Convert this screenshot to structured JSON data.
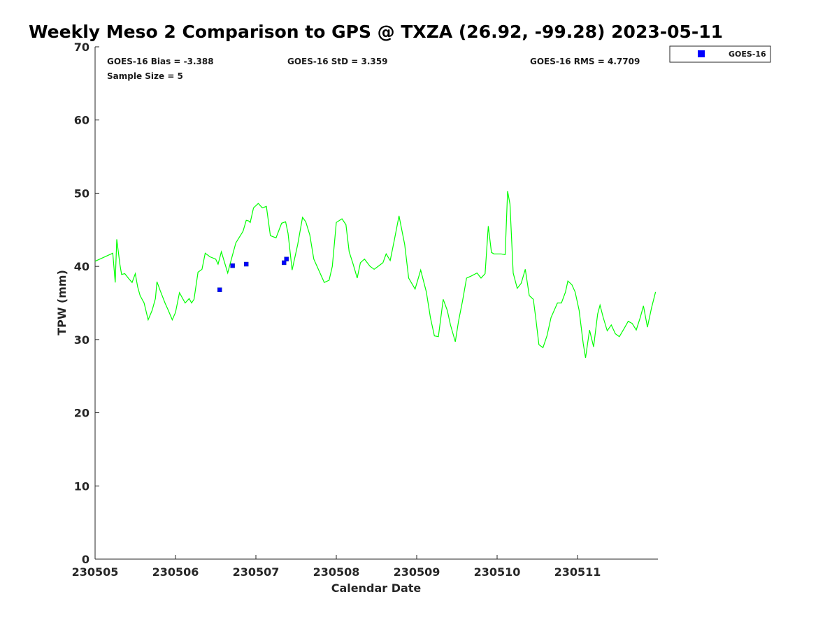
{
  "chart_data": {
    "type": "line",
    "title": "Weekly Meso 2 Comparison to GPS @ TXZA (26.92, -99.28) 2023-05-11",
    "xlabel": "Calendar Date",
    "ylabel": "TPW (mm)",
    "xlim": [
      230505,
      230512
    ],
    "ylim": [
      0,
      70
    ],
    "x_ticks": [
      230505,
      230506,
      230507,
      230508,
      230509,
      230510,
      230511
    ],
    "x_tick_labels": [
      "230505",
      "230506",
      "230507",
      "230508",
      "230509",
      "230510",
      "230511"
    ],
    "y_ticks": [
      0,
      10,
      20,
      30,
      40,
      50,
      60,
      70
    ],
    "y_tick_labels": [
      "0",
      "10",
      "20",
      "30",
      "40",
      "50",
      "60",
      "70"
    ],
    "grid": false,
    "legend_position": "outside-top-right",
    "stats": {
      "bias": "GOES-16 Bias = -3.388",
      "std": "GOES-16 StD = 3.359",
      "rms": "GOES-16 RMS = 4.7709",
      "sample_size": "Sample Size = 5"
    },
    "series": [
      {
        "kind": "line",
        "color": "#00ff00",
        "x": [
          230505.0,
          230505.22,
          230505.25,
          230505.27,
          230505.31,
          230505.33,
          230505.37,
          230505.42,
          230505.46,
          230505.5,
          230505.53,
          230505.56,
          230505.61,
          230505.66,
          230505.71,
          230505.75,
          230505.77,
          230505.81,
          230505.87,
          230505.91,
          230505.96,
          230506.0,
          230506.05,
          230506.12,
          230506.17,
          230506.2,
          230506.23,
          230506.28,
          230506.33,
          230506.37,
          230506.43,
          230506.5,
          230506.53,
          230506.57,
          230506.65,
          230506.69,
          230506.75,
          230506.84,
          230506.88,
          230506.91,
          230506.93,
          230506.97,
          230507.03,
          230507.08,
          230507.13,
          230507.18,
          230507.25,
          230507.32,
          230507.37,
          230507.4,
          230507.45,
          230507.52,
          230507.58,
          230507.62,
          230507.67,
          230507.72,
          230507.85,
          230507.91,
          230507.95,
          230508.0,
          230508.07,
          230508.12,
          230508.16,
          230508.21,
          230508.26,
          230508.3,
          230508.35,
          230508.42,
          230508.47,
          230508.52,
          230508.58,
          230508.62,
          230508.67,
          230508.72,
          230508.78,
          230508.85,
          230508.9,
          230508.98,
          230509.05,
          230509.12,
          230509.17,
          230509.22,
          230509.27,
          230509.33,
          230509.38,
          230509.42,
          230509.48,
          230509.52,
          230509.57,
          230509.62,
          230509.68,
          230509.75,
          230509.8,
          230509.85,
          230509.89,
          230509.93,
          230509.96,
          230510.05,
          230510.1,
          230510.13,
          230510.16,
          230510.2,
          230510.25,
          230510.3,
          230510.35,
          230510.4,
          230510.45,
          230510.48,
          230510.52,
          230510.57,
          230510.62,
          230510.67,
          230510.75,
          230510.8,
          230510.85,
          230510.88,
          230510.93,
          230510.97,
          230511.02,
          230511.07,
          230511.1,
          230511.15,
          230511.2,
          230511.25,
          230511.28,
          230511.32,
          230511.37,
          230511.42,
          230511.47,
          230511.52,
          230511.58,
          230511.63,
          230511.68,
          230511.73,
          230511.78,
          230511.82,
          230511.87,
          230511.92,
          230511.97
        ],
        "values": [
          40.7,
          41.8,
          37.8,
          43.7,
          40.2,
          38.9,
          39.0,
          38.3,
          37.8,
          39.0,
          37.2,
          36.0,
          35.0,
          32.7,
          34.0,
          35.6,
          37.9,
          36.7,
          35.0,
          34.0,
          32.7,
          33.7,
          36.4,
          35.0,
          35.6,
          35.0,
          35.5,
          39.2,
          39.6,
          41.8,
          41.3,
          41.0,
          40.3,
          42.0,
          39.1,
          40.8,
          43.2,
          44.8,
          46.3,
          46.2,
          46.0,
          48.0,
          48.6,
          48.0,
          48.2,
          44.2,
          43.9,
          45.9,
          46.1,
          44.5,
          39.5,
          43.0,
          46.7,
          46.1,
          44.3,
          41.0,
          37.8,
          38.1,
          40.0,
          46.0,
          46.5,
          45.7,
          42.0,
          40.3,
          38.4,
          40.5,
          41.0,
          40.0,
          39.6,
          40.0,
          40.5,
          41.7,
          40.8,
          43.5,
          46.9,
          43.0,
          38.4,
          36.9,
          39.5,
          36.5,
          33.0,
          30.5,
          30.4,
          35.5,
          34.0,
          32.0,
          29.7,
          32.5,
          35.3,
          38.4,
          38.7,
          39.1,
          38.4,
          39.0,
          45.5,
          41.9,
          41.7,
          41.7,
          41.6,
          50.3,
          48.5,
          39.1,
          37.0,
          37.7,
          39.6,
          36.0,
          35.5,
          33.0,
          29.3,
          28.9,
          30.5,
          33.0,
          35.0,
          35.0,
          36.5,
          38.0,
          37.5,
          36.5,
          34.0,
          29.5,
          27.5,
          31.3,
          29.0,
          33.5,
          34.7,
          33.0,
          31.2,
          32.0,
          30.8,
          30.4,
          31.5,
          32.5,
          32.2,
          31.3,
          33.0,
          34.6,
          31.7,
          34.3,
          36.5
        ]
      },
      {
        "kind": "scatter",
        "name": "GOES-16",
        "color": "#0000ff",
        "x": [
          230506.55,
          230506.71,
          230506.88,
          230507.35,
          230507.38
        ],
        "values": [
          36.8,
          40.1,
          40.3,
          40.5,
          41.0
        ]
      }
    ]
  }
}
